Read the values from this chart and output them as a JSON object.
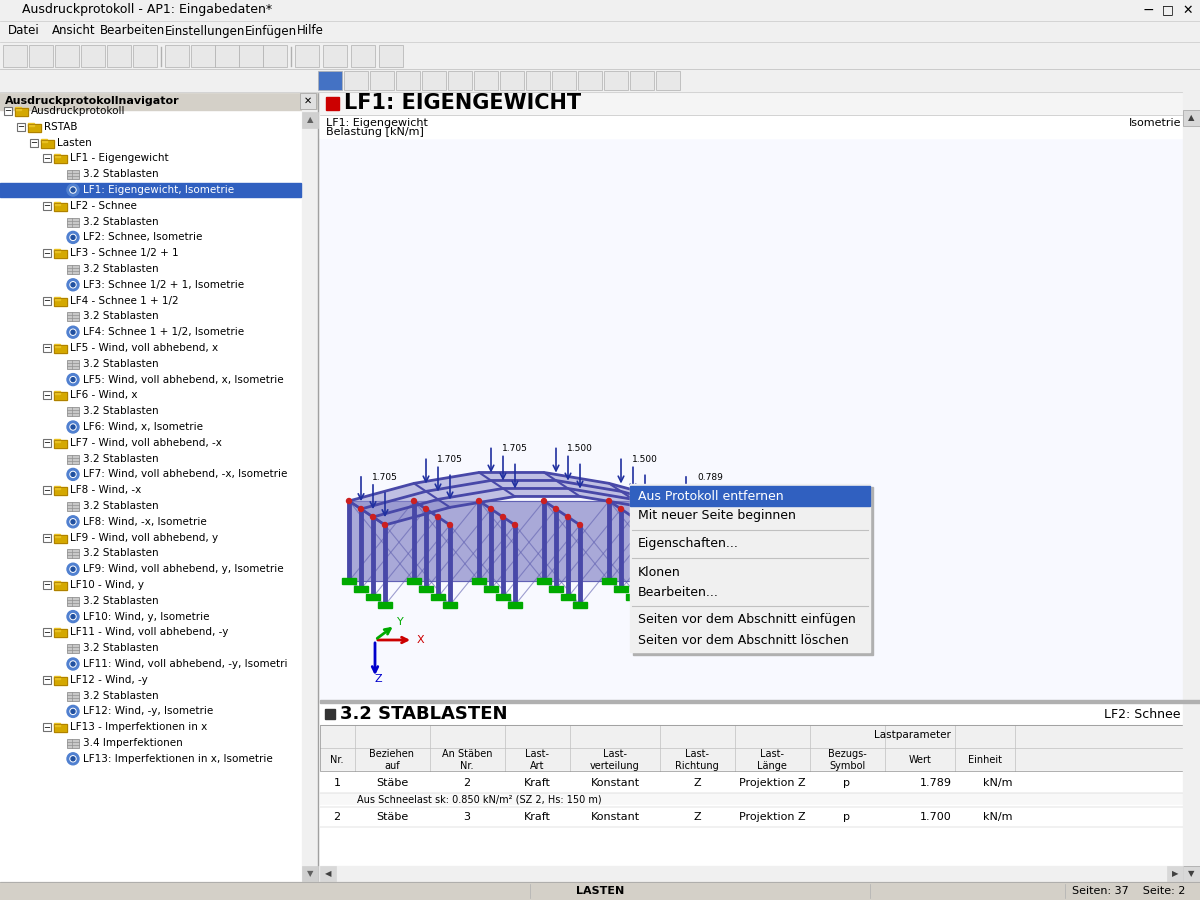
{
  "title_bar": "Ausdruckprotokoll - AP1: Eingabedaten*",
  "menu_items": [
    "Datei",
    "Ansicht",
    "Bearbeiten",
    "Einstellungen",
    "Einfügen",
    "Hilfe"
  ],
  "bg_color": "#f0f0f0",
  "nav_panel_title": "Ausdruckprotokollnavigator",
  "tree_items": [
    {
      "level": 0,
      "text": "Ausdruckprotokoll",
      "type": "folder",
      "expanded": true
    },
    {
      "level": 1,
      "text": "RSTAB",
      "type": "folder",
      "expanded": true
    },
    {
      "level": 2,
      "text": "Lasten",
      "type": "folder",
      "expanded": true
    },
    {
      "level": 3,
      "text": "LF1 - Eigengewicht",
      "type": "folder",
      "expanded": true
    },
    {
      "level": 4,
      "text": "3.2 Stablasten",
      "type": "table"
    },
    {
      "level": 4,
      "text": "LF1: Eigengewicht, Isometrie",
      "type": "eye",
      "selected": true
    },
    {
      "level": 3,
      "text": "LF2 - Schnee",
      "type": "folder",
      "expanded": true
    },
    {
      "level": 4,
      "text": "3.2 Stablasten",
      "type": "table"
    },
    {
      "level": 4,
      "text": "LF2: Schnee, Isometrie",
      "type": "eye"
    },
    {
      "level": 3,
      "text": "LF3 - Schnee 1/2 + 1",
      "type": "folder",
      "expanded": true
    },
    {
      "level": 4,
      "text": "3.2 Stablasten",
      "type": "table"
    },
    {
      "level": 4,
      "text": "LF3: Schnee 1/2 + 1, Isometrie",
      "type": "eye"
    },
    {
      "level": 3,
      "text": "LF4 - Schnee 1 + 1/2",
      "type": "folder",
      "expanded": true
    },
    {
      "level": 4,
      "text": "3.2 Stablasten",
      "type": "table"
    },
    {
      "level": 4,
      "text": "LF4: Schnee 1 + 1/2, Isometrie",
      "type": "eye"
    },
    {
      "level": 3,
      "text": "LF5 - Wind, voll abhebend, x",
      "type": "folder",
      "expanded": true
    },
    {
      "level": 4,
      "text": "3.2 Stablasten",
      "type": "table"
    },
    {
      "level": 4,
      "text": "LF5: Wind, voll abhebend, x, Isometrie",
      "type": "eye"
    },
    {
      "level": 3,
      "text": "LF6 - Wind, x",
      "type": "folder",
      "expanded": true
    },
    {
      "level": 4,
      "text": "3.2 Stablasten",
      "type": "table"
    },
    {
      "level": 4,
      "text": "LF6: Wind, x, Isometrie",
      "type": "eye"
    },
    {
      "level": 3,
      "text": "LF7 - Wind, voll abhebend, -x",
      "type": "folder",
      "expanded": true
    },
    {
      "level": 4,
      "text": "3.2 Stablasten",
      "type": "table"
    },
    {
      "level": 4,
      "text": "LF7: Wind, voll abhebend, -x, Isometrie",
      "type": "eye"
    },
    {
      "level": 3,
      "text": "LF8 - Wind, -x",
      "type": "folder",
      "expanded": true
    },
    {
      "level": 4,
      "text": "3.2 Stablasten",
      "type": "table"
    },
    {
      "level": 4,
      "text": "LF8: Wind, -x, Isometrie",
      "type": "eye"
    },
    {
      "level": 3,
      "text": "LF9 - Wind, voll abhebend, y",
      "type": "folder",
      "expanded": true
    },
    {
      "level": 4,
      "text": "3.2 Stablasten",
      "type": "table"
    },
    {
      "level": 4,
      "text": "LF9: Wind, voll abhebend, y, Isometrie",
      "type": "eye"
    },
    {
      "level": 3,
      "text": "LF10 - Wind, y",
      "type": "folder",
      "expanded": true
    },
    {
      "level": 4,
      "text": "3.2 Stablasten",
      "type": "table"
    },
    {
      "level": 4,
      "text": "LF10: Wind, y, Isometrie",
      "type": "eye"
    },
    {
      "level": 3,
      "text": "LF11 - Wind, voll abhebend, -y",
      "type": "folder",
      "expanded": true
    },
    {
      "level": 4,
      "text": "3.2 Stablasten",
      "type": "table"
    },
    {
      "level": 4,
      "text": "LF11: Wind, voll abhebend, -y, Isometri",
      "type": "eye"
    },
    {
      "level": 3,
      "text": "LF12 - Wind, -y",
      "type": "folder",
      "expanded": true
    },
    {
      "level": 4,
      "text": "3.2 Stablasten",
      "type": "table"
    },
    {
      "level": 4,
      "text": "LF12: Wind, -y, Isometrie",
      "type": "eye"
    },
    {
      "level": 3,
      "text": "LF13 - Imperfektionen in x",
      "type": "folder",
      "expanded": true
    },
    {
      "level": 4,
      "text": "3.4 Imperfektionen",
      "type": "table"
    },
    {
      "level": 4,
      "text": "LF13: Imperfektionen in x, Isometrie",
      "type": "eye"
    }
  ],
  "content_title": "LF1: EIGENGEWICHT",
  "content_subtitle": "LF1: Eigengewicht",
  "content_unit": "Belastung [kN/m]",
  "content_label_right": "Isometrie",
  "context_menu_items": [
    {
      "text": "Aus Protokoll entfernen",
      "highlight": true
    },
    {
      "text": "Mit neuer Seite beginnen",
      "highlight": false
    },
    {
      "text": "---"
    },
    {
      "text": "Eigenschaften...",
      "highlight": false
    },
    {
      "text": "---"
    },
    {
      "text": "Klonen",
      "highlight": false
    },
    {
      "text": "Bearbeiten...",
      "highlight": false
    },
    {
      "text": "---"
    },
    {
      "text": "Seiten vor dem Abschnitt einfügen",
      "highlight": false
    },
    {
      "text": "Seiten vor dem Abschnitt löschen",
      "highlight": false
    }
  ],
  "bottom_bar_text": "LASTEN",
  "bottom_bar_right": "Seiten: 37    Seite: 2",
  "section_title": "3.2 STABLASTEN",
  "section_right": "LF2: Schnee",
  "table_row1": [
    "1",
    "Stäbe",
    "2",
    "Kraft",
    "Konstant",
    "Z",
    "Projektion Z",
    "p",
    "1.789",
    "kN/m"
  ],
  "table_row1_note": "Aus Schneelast sk: 0.850 kN/m² (SZ 2, Hs: 150 m)",
  "table_row2": [
    "2",
    "Stäbe",
    "3",
    "Kraft",
    "Konstant",
    "Z",
    "Projektion Z",
    "p",
    "1.700",
    "kN/m"
  ]
}
